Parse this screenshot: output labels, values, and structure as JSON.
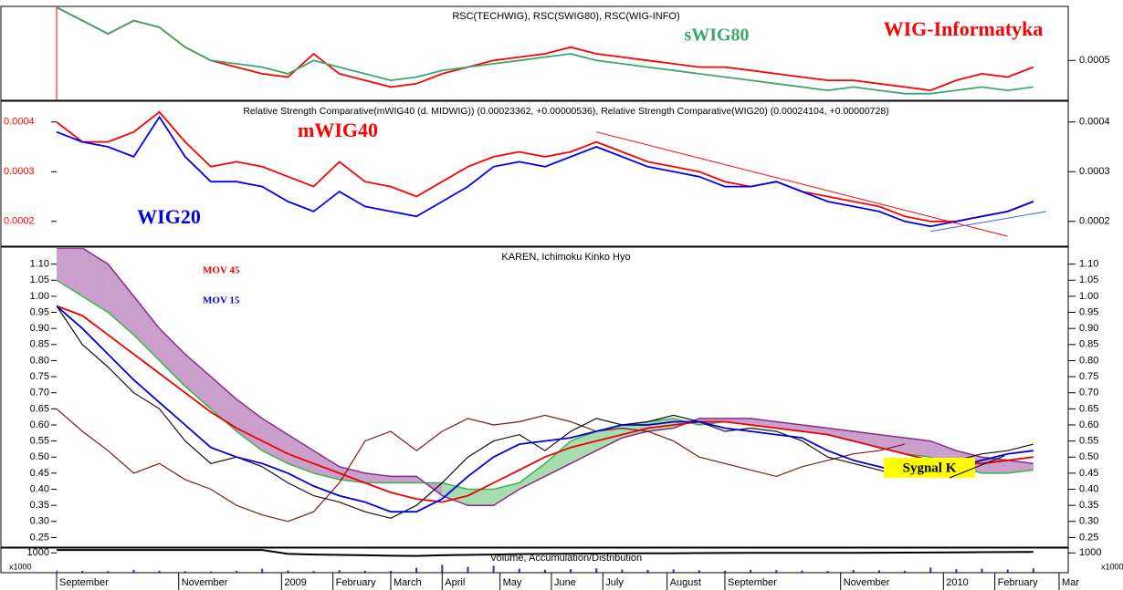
{
  "chart_data": [
    {
      "type": "line",
      "title": "RSC(TECHWIG), RSC(SWIG80), RSC(WIG-INFO)",
      "x": [
        0,
        2,
        4,
        6,
        8,
        10,
        12,
        14,
        16,
        18,
        20,
        22,
        24,
        26,
        28,
        30,
        32,
        34,
        36,
        38,
        40,
        42,
        44,
        46,
        48,
        50,
        52,
        54,
        56,
        58,
        60,
        62,
        64,
        66,
        68,
        70,
        72,
        74,
        76
      ],
      "xlim": [
        0,
        78
      ],
      "ylim": [
        0.00044,
        0.00058
      ],
      "yticks": [
        0.0005
      ],
      "ytick_side": "right",
      "series": [
        {
          "name": "WIG-Informatyka",
          "color": "#ff0000",
          "values": [
            0.00058,
            0.00056,
            0.00054,
            0.00056,
            0.00055,
            0.00052,
            0.0005,
            0.00049,
            0.00048,
            0.000475,
            0.00051,
            0.00048,
            0.00047,
            0.00046,
            0.000465,
            0.00048,
            0.00049,
            0.0005,
            0.000505,
            0.00051,
            0.00052,
            0.00051,
            0.000505,
            0.0005,
            0.000495,
            0.00049,
            0.00049,
            0.000485,
            0.00048,
            0.000475,
            0.00047,
            0.00047,
            0.000465,
            0.00046,
            0.000455,
            0.00047,
            0.00048,
            0.000475,
            0.00049
          ]
        },
        {
          "name": "sWIG80",
          "color": "#3aa86b",
          "values": [
            0.00058,
            0.00056,
            0.00054,
            0.00056,
            0.00055,
            0.00052,
            0.0005,
            0.000495,
            0.00049,
            0.00048,
            0.0005,
            0.00049,
            0.00048,
            0.00047,
            0.000475,
            0.000485,
            0.00049,
            0.000495,
            0.0005,
            0.000505,
            0.00051,
            0.0005,
            0.000495,
            0.00049,
            0.000485,
            0.00048,
            0.000475,
            0.00047,
            0.000465,
            0.00046,
            0.000455,
            0.00046,
            0.000455,
            0.00045,
            0.00045,
            0.000455,
            0.00046,
            0.000455,
            0.00046
          ]
        }
      ]
    },
    {
      "type": "line",
      "title": "Relative Strength Comparative(mWIG40 (d. MIDWIG)) (0.00023362, +0.00000536), Relative Strength Comparative(WIG20) (0.00024104, +0.00000728)",
      "x": [
        0,
        2,
        4,
        6,
        8,
        10,
        12,
        14,
        16,
        18,
        20,
        22,
        24,
        26,
        28,
        30,
        32,
        34,
        36,
        38,
        40,
        42,
        44,
        46,
        48,
        50,
        52,
        54,
        56,
        58,
        60,
        62,
        64,
        66,
        68,
        70,
        72,
        74,
        76
      ],
      "xlim": [
        0,
        78
      ],
      "ylim": [
        0.00015,
        0.00044
      ],
      "yticks": [
        0.0002,
        0.0003,
        0.0004
      ],
      "ytick_side": "both",
      "left_tick_color": "#ff0000",
      "series": [
        {
          "name": "mWIG40",
          "color": "#ff0000",
          "values": [
            0.0004,
            0.00036,
            0.00036,
            0.00038,
            0.00042,
            0.00036,
            0.00031,
            0.00032,
            0.00031,
            0.00029,
            0.00027,
            0.00032,
            0.00028,
            0.00027,
            0.00025,
            0.00028,
            0.00031,
            0.00033,
            0.00034,
            0.00033,
            0.00034,
            0.00036,
            0.00034,
            0.00032,
            0.00031,
            0.0003,
            0.00028,
            0.00027,
            0.00028,
            0.00026,
            0.00025,
            0.00024,
            0.00023,
            0.00021,
            0.0002,
            0.0002,
            0.00021,
            0.00022,
            0.00024
          ]
        },
        {
          "name": "WIG20",
          "color": "#0000ee",
          "values": [
            0.00038,
            0.00036,
            0.00035,
            0.00033,
            0.00041,
            0.00033,
            0.00028,
            0.00028,
            0.00027,
            0.00024,
            0.00022,
            0.00026,
            0.00023,
            0.00022,
            0.00021,
            0.00024,
            0.00027,
            0.00031,
            0.00032,
            0.00031,
            0.00033,
            0.00035,
            0.00033,
            0.00031,
            0.0003,
            0.00029,
            0.00027,
            0.00027,
            0.00028,
            0.00026,
            0.00024,
            0.00023,
            0.00022,
            0.0002,
            0.00019,
            0.0002,
            0.00021,
            0.00022,
            0.00024
          ]
        }
      ],
      "trendlines": [
        {
          "color": "#ff0000",
          "x": [
            42,
            74
          ],
          "values": [
            0.00038,
            0.00017
          ]
        },
        {
          "color": "#4060ff",
          "x": [
            68,
            77
          ],
          "values": [
            0.00018,
            0.00022
          ]
        }
      ]
    },
    {
      "type": "line",
      "title": "KAREN, Ichimoku Kinko Hyo",
      "annotation": "Sygnal K",
      "x": [
        0,
        2,
        4,
        6,
        8,
        10,
        12,
        14,
        16,
        18,
        20,
        22,
        24,
        26,
        28,
        30,
        32,
        34,
        36,
        38,
        40,
        42,
        44,
        46,
        48,
        50,
        52,
        54,
        56,
        58,
        60,
        62,
        64,
        66,
        68,
        70,
        72,
        74,
        76
      ],
      "xlim": [
        0,
        78
      ],
      "ylim": [
        0.22,
        1.15
      ],
      "ytick_side": "both",
      "yticks": [
        0.25,
        {
          "value": 0.3,
          "label": "0.30"
        },
        0.35,
        {
          "value": 0.4,
          "label": "0.40"
        },
        0.45,
        {
          "value": 0.5,
          "label": "0.50"
        },
        0.55,
        {
          "value": 0.6,
          "label": "0.60"
        },
        0.65,
        {
          "value": 0.7,
          "label": "0.70"
        },
        0.75,
        {
          "value": 0.8,
          "label": "0.80"
        },
        0.85,
        {
          "value": 0.9,
          "label": "0.90"
        },
        0.95,
        {
          "value": 1,
          "label": "1.00"
        },
        1.05,
        {
          "value": 1.1,
          "label": "1.10"
        }
      ],
      "cloud": [
        {
          "color": "#3cb44b",
          "values": [
            1.05,
            1.0,
            0.95,
            0.88,
            0.8,
            0.72,
            0.65,
            0.58,
            0.52,
            0.48,
            0.45,
            0.43,
            0.42,
            0.42,
            0.42,
            0.42,
            0.4,
            0.4,
            0.42,
            0.48,
            0.55,
            0.58,
            0.6,
            0.61,
            0.62,
            0.6,
            0.61,
            0.6,
            0.59,
            0.58,
            0.57,
            0.55,
            0.53,
            0.51,
            0.5,
            0.47,
            0.45,
            0.45,
            0.46
          ]
        },
        {
          "color": "#8b2a8b",
          "values": [
            1.15,
            1.15,
            1.1,
            1.0,
            0.9,
            0.82,
            0.75,
            0.68,
            0.62,
            0.57,
            0.52,
            0.47,
            0.45,
            0.44,
            0.44,
            0.38,
            0.35,
            0.35,
            0.4,
            0.44,
            0.48,
            0.52,
            0.56,
            0.58,
            0.59,
            0.62,
            0.62,
            0.62,
            0.61,
            0.6,
            0.59,
            0.58,
            0.57,
            0.56,
            0.55,
            0.52,
            0.5,
            0.49,
            0.48
          ]
        }
      ],
      "series": [
        {
          "color": "#7a1a1a",
          "values": [
            0.65,
            0.58,
            0.52,
            0.45,
            0.48,
            0.43,
            0.4,
            0.35,
            0.32,
            0.3,
            0.33,
            0.42,
            0.55,
            0.58,
            0.52,
            0.58,
            0.62,
            0.6,
            0.61,
            0.63,
            0.61,
            0.58,
            0.59,
            0.58,
            0.55,
            0.5,
            0.48,
            0.46,
            0.44,
            0.47,
            0.49,
            0.51,
            0.52,
            0.54,
            null,
            null,
            null,
            null,
            null
          ]
        },
        {
          "color": "#111111",
          "values": [
            0.97,
            0.85,
            0.78,
            0.7,
            0.65,
            0.55,
            0.48,
            0.5,
            0.47,
            0.42,
            0.38,
            0.36,
            0.33,
            0.31,
            0.35,
            0.42,
            0.5,
            0.55,
            0.57,
            0.52,
            0.58,
            0.62,
            0.6,
            0.61,
            0.63,
            0.61,
            0.58,
            0.59,
            0.58,
            0.55,
            0.5,
            0.48,
            0.46,
            0.44,
            0.47,
            0.49,
            0.51,
            0.52,
            0.54
          ]
        },
        {
          "name": "MOV 45",
          "color": "#ee0000",
          "values": [
            0.97,
            0.94,
            0.88,
            0.82,
            0.76,
            0.7,
            0.64,
            0.59,
            0.55,
            0.51,
            0.48,
            0.45,
            0.42,
            0.39,
            0.37,
            0.36,
            0.38,
            0.42,
            0.46,
            0.5,
            0.53,
            0.55,
            0.57,
            0.59,
            0.6,
            0.61,
            0.61,
            0.6,
            0.59,
            0.58,
            0.57,
            0.55,
            0.53,
            0.51,
            0.49,
            0.48,
            0.48,
            0.49,
            0.5
          ]
        },
        {
          "name": "MOV 15",
          "color": "#0000dd",
          "values": [
            0.97,
            0.9,
            0.82,
            0.74,
            0.67,
            0.6,
            0.53,
            0.5,
            0.48,
            0.45,
            0.41,
            0.38,
            0.36,
            0.33,
            0.33,
            0.37,
            0.44,
            0.5,
            0.54,
            0.55,
            0.56,
            0.58,
            0.6,
            0.6,
            0.61,
            0.61,
            0.59,
            0.58,
            0.57,
            0.56,
            0.52,
            0.49,
            0.47,
            0.45,
            0.45,
            0.47,
            0.49,
            0.51,
            0.52
          ]
        }
      ]
    },
    {
      "type": "bar",
      "title": "Volume, Accumulation/Distribution",
      "unit": "x1000",
      "x": [
        0,
        2,
        4,
        6,
        8,
        10,
        12,
        14,
        16,
        18,
        20,
        22,
        24,
        26,
        28,
        30,
        32,
        34,
        36,
        38,
        40,
        42,
        44,
        46,
        48,
        50,
        52,
        54,
        56,
        58,
        60,
        62,
        64,
        66,
        68,
        70,
        72,
        74,
        76
      ],
      "xlim": [
        0,
        78
      ],
      "ylim": [
        0,
        1200
      ],
      "yticks": [
        1000
      ],
      "ytick_side": "both",
      "xticks": [
        {
          "value": 0,
          "label": "September"
        },
        {
          "value": 9.5,
          "label": "November"
        },
        {
          "value": 17.5,
          "label": "2009"
        },
        {
          "value": 21.5,
          "label": "February"
        },
        {
          "value": 26,
          "label": "March"
        },
        {
          "value": 30,
          "label": "April"
        },
        {
          "value": 34.5,
          "label": "May"
        },
        {
          "value": 38.5,
          "label": "June"
        },
        {
          "value": 42.5,
          "label": "July"
        },
        {
          "value": 47.5,
          "label": "August"
        },
        {
          "value": 52,
          "label": "September"
        },
        {
          "value": 61,
          "label": "November"
        },
        {
          "value": 69,
          "label": "2010"
        },
        {
          "value": 73,
          "label": "February"
        },
        {
          "value": 78,
          "label": "Mar"
        }
      ],
      "color": "#2233cc",
      "values": [
        120,
        90,
        80,
        150,
        100,
        70,
        60,
        90,
        200,
        110,
        80,
        130,
        100,
        90,
        250,
        400,
        300,
        350,
        200,
        150,
        180,
        220,
        160,
        140,
        170,
        120,
        100,
        150,
        130,
        110,
        90,
        140,
        120,
        100,
        260,
        180,
        200,
        160,
        220
      ],
      "line": {
        "color": "#000000",
        "values": [
          1150,
          1150,
          1150,
          1150,
          1150,
          1150,
          1150,
          1150,
          1150,
          950,
          920,
          900,
          880,
          860,
          850,
          880,
          900,
          920,
          940,
          950,
          960,
          970,
          975,
          980,
          985,
          990,
          995,
          1000,
          1000,
          1000,
          1000,
          1005,
          1010,
          1015,
          1020,
          1030,
          1040,
          1045,
          1050
        ]
      }
    }
  ]
}
